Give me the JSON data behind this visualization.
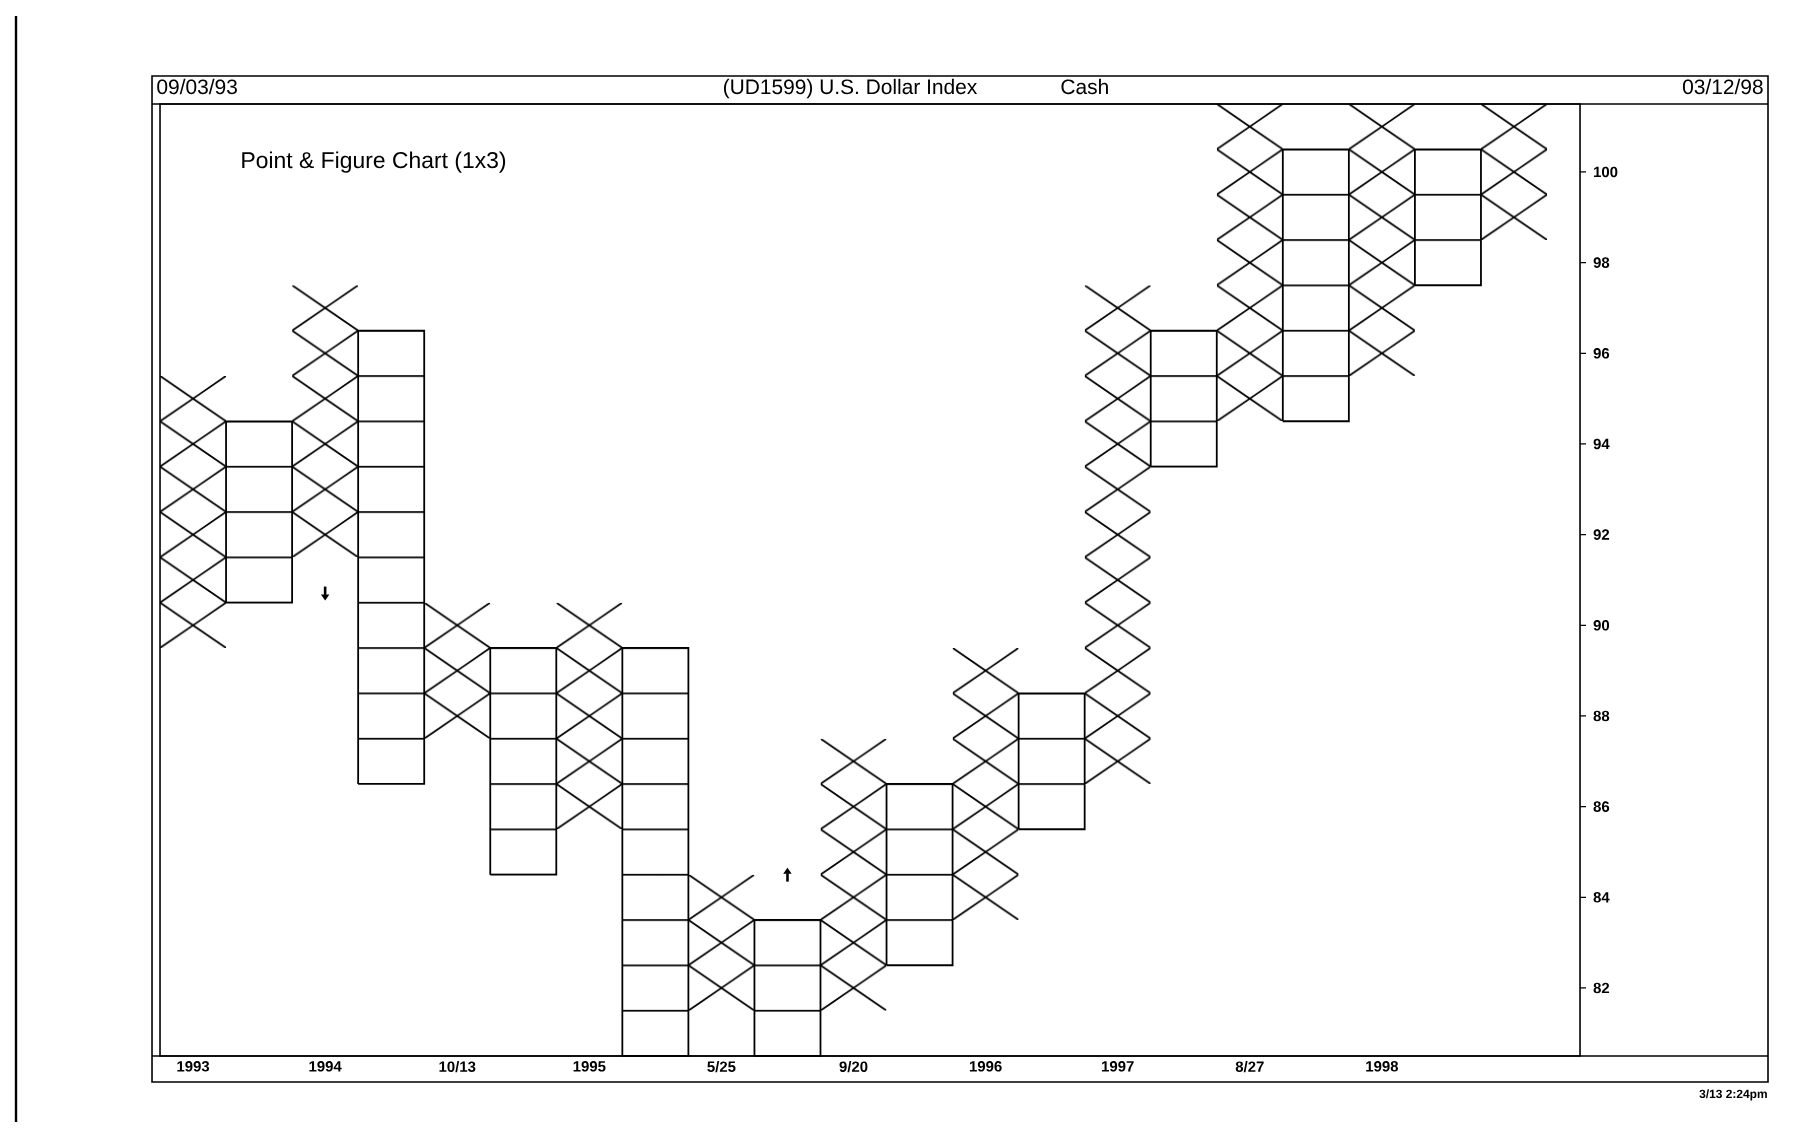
{
  "chart_data": {
    "type": "bar",
    "title": "(UD1599) U.S. Dollar Index",
    "subtitle": "Cash",
    "annotations": [
      "09/03/93",
      "03/12/98",
      "Point & Figure Chart (1x3)",
      "3/13 2:24pm"
    ],
    "categories": [
      "1993",
      null,
      "1994",
      null,
      "10/13",
      null,
      "1995",
      null,
      "5/25",
      null,
      "9/20",
      null,
      "1996",
      null,
      "1997",
      null,
      "8/27",
      null,
      "1998",
      null,
      null
    ],
    "series": [
      {
        "color": "#000000",
        "marker": "cross",
        "base": [
          89.5,
          null,
          91.5,
          null,
          87.5,
          null,
          85.5,
          null,
          81.5,
          null,
          81.5,
          null,
          83.5,
          null,
          86.5,
          null,
          94.5,
          null,
          95.5,
          null,
          98.5
        ],
        "values": [
          6,
          null,
          6,
          null,
          3,
          null,
          5,
          null,
          3,
          null,
          6,
          null,
          6,
          null,
          11,
          null,
          7,
          null,
          6,
          null,
          3
        ]
      },
      {
        "color": "#000000",
        "marker": "square",
        "base": [
          null,
          90.5,
          null,
          86.5,
          null,
          84.5,
          null,
          80.5,
          null,
          80.5,
          null,
          82.5,
          null,
          85.5,
          null,
          93.5,
          null,
          94.5,
          null,
          97.5,
          null
        ],
        "values": [
          null,
          4,
          null,
          10,
          null,
          5,
          null,
          9,
          null,
          3,
          null,
          4,
          null,
          3,
          null,
          3,
          null,
          6,
          null,
          3,
          null
        ]
      }
    ],
    "ylim": [
      80.5,
      101.5
    ],
    "yticks": [
      82,
      84,
      86,
      88,
      90,
      92,
      94,
      96,
      98,
      100
    ],
    "grid": false
  }
}
